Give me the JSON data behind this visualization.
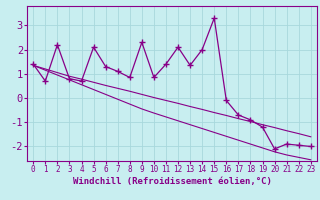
{
  "xlabel": "Windchill (Refroidissement éolien,°C)",
  "bg_color": "#c8eef0",
  "line_color": "#880088",
  "grid_color": "#a8d8dc",
  "hours": [
    0,
    1,
    2,
    3,
    4,
    5,
    6,
    7,
    8,
    9,
    10,
    11,
    12,
    13,
    14,
    15,
    16,
    17,
    18,
    19,
    20,
    21,
    22,
    23
  ],
  "data_line": [
    1.4,
    0.7,
    2.2,
    0.8,
    0.7,
    2.1,
    1.3,
    1.1,
    0.85,
    2.3,
    0.85,
    1.4,
    2.1,
    1.35,
    2.0,
    3.3,
    -0.1,
    -0.7,
    -0.9,
    -1.2,
    -2.1,
    -1.9,
    -1.95,
    -2.0
  ],
  "trend_line1": [
    1.35,
    1.2,
    1.05,
    0.9,
    0.78,
    0.65,
    0.52,
    0.4,
    0.28,
    0.15,
    0.02,
    -0.1,
    -0.22,
    -0.35,
    -0.47,
    -0.6,
    -0.72,
    -0.85,
    -0.97,
    -1.1,
    -1.22,
    -1.35,
    -1.47,
    -1.6
  ],
  "trend_line2": [
    1.35,
    1.15,
    0.95,
    0.75,
    0.55,
    0.35,
    0.15,
    -0.05,
    -0.25,
    -0.45,
    -0.62,
    -0.78,
    -0.94,
    -1.1,
    -1.26,
    -1.42,
    -1.58,
    -1.74,
    -1.9,
    -2.06,
    -2.22,
    -2.35,
    -2.45,
    -2.55
  ],
  "ylim": [
    -2.6,
    3.8
  ],
  "yticks": [
    -2,
    -1,
    0,
    1,
    2,
    3
  ],
  "xlim": [
    -0.5,
    23.5
  ],
  "tick_color": "#880088",
  "label_fontsize": 5.5,
  "ylabel_fontsize": 7.5,
  "xlabel_fontsize": 6.5
}
